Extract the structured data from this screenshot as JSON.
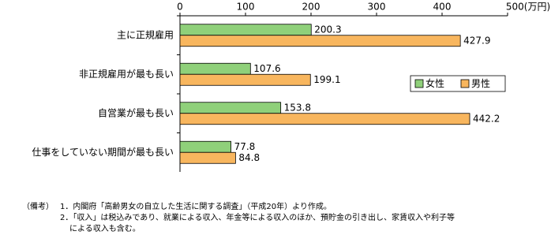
{
  "chart_data": {
    "type": "bar",
    "orientation": "horizontal",
    "categories": [
      "主に正規雇用",
      "非正規雇用が最も長い",
      "自営業が最も長い",
      "仕事をしていない期間が最も長い"
    ],
    "series": [
      {
        "name": "女性",
        "color": "#8fd07a",
        "values": [
          200.3,
          107.6,
          153.8,
          77.8
        ]
      },
      {
        "name": "男性",
        "color": "#f8b65e",
        "values": [
          427.9,
          199.1,
          442.2,
          84.8
        ]
      }
    ],
    "xlim": [
      0,
      500
    ],
    "xticks": [
      0,
      100,
      200,
      300,
      400,
      {
        "value": 500,
        "label": "500(万円)"
      }
    ],
    "legend": "right",
    "notes_label": "（備考）",
    "notes": [
      "1．内閣府「高齢男女の自立した生活に関する調査」（平成20年）より作成。",
      "2．「収入」は税込みであり、就業による収入、年金等による収入のほか、預貯金の引き出し、家賃収入や利子等",
      "による収入も含む。"
    ]
  }
}
